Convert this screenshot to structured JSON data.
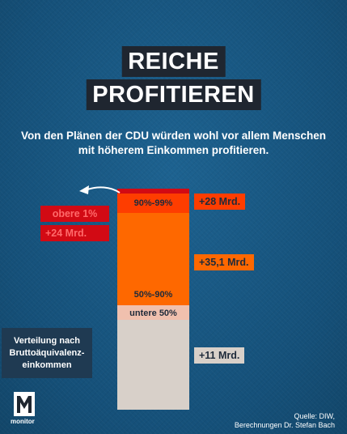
{
  "title_lines": [
    "REICHE",
    "PROFITIEREN"
  ],
  "subtitle_lines": [
    "Von den Plänen der CDU würden wohl vor allem Menschen",
    "mit höherem Einkommen profitieren."
  ],
  "chart_data": {
    "type": "bar",
    "unit": "Mrd.",
    "segments": [
      {
        "name": "untere 50%",
        "label": "untere 50%",
        "value": 11,
        "value_label": "+11 Mrd."
      },
      {
        "name": "50%-90%",
        "label": "50%-90%",
        "value": 35.1,
        "value_label": "+35,1 Mrd."
      },
      {
        "name": "90%-99%",
        "label": "90%-99%",
        "value": 28,
        "value_label": "+28 Mrd."
      },
      {
        "name": "obere 1%",
        "label": "obere 1%",
        "value": 24,
        "value_label": "+24 Mrd."
      }
    ],
    "colors": {
      "untere": "#d8d0c9",
      "untere_label_band": "#f0c0ae",
      "mittel": "#fe6800",
      "oben": "#fe3d00",
      "top1": "#d20a14",
      "top1_label_text": "#ff6a6a"
    }
  },
  "legend_lines": [
    "Verteilung nach",
    "Bruttoäquivalenz-",
    "einkommen"
  ],
  "logo": {
    "text": "monitor",
    "icon": "monitor-m-logo-icon"
  },
  "source_lines": [
    "Quelle: DIW,",
    "Berechnungen Dr. Stefan Bach"
  ]
}
